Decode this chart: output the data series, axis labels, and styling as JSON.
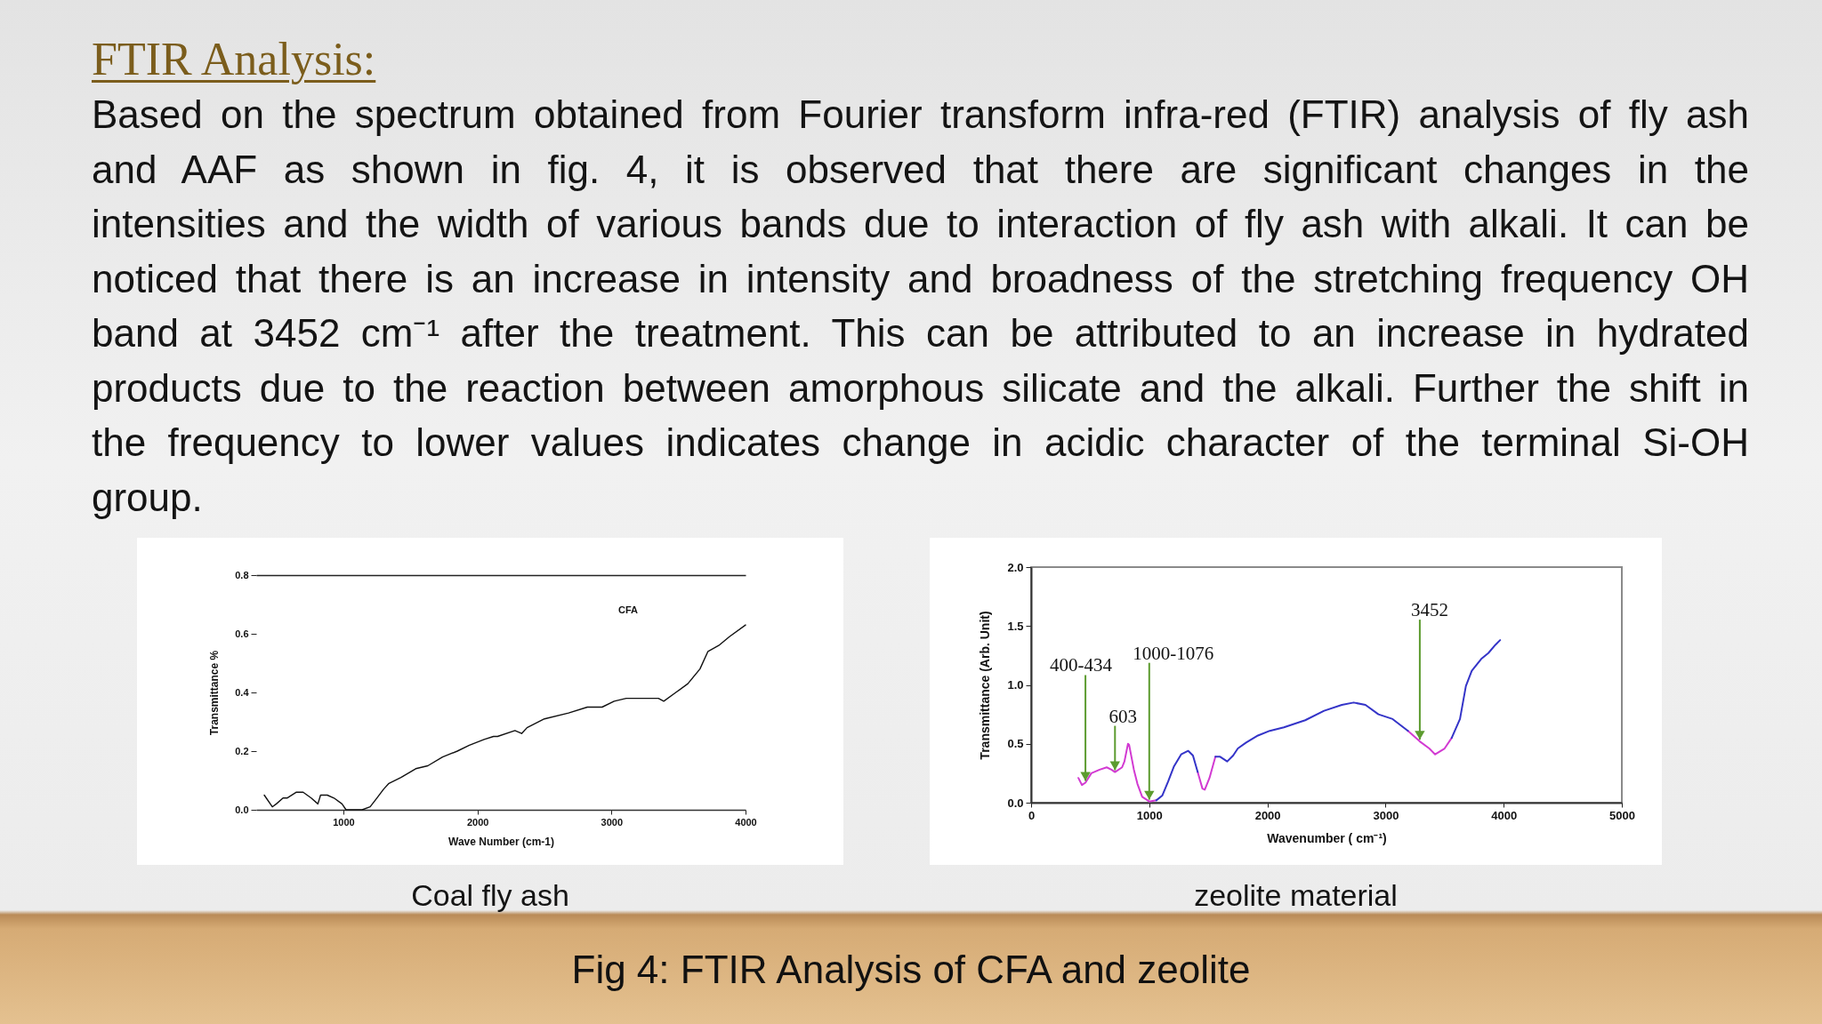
{
  "chart_data": [
    {
      "type": "other",
      "title": "FTIR Analysis:",
      "annotations": [
        "Based on the spectrum obtained from Fourier transform infra-red (FTIR) analysis of fly ash and AAF as shown in fig. 4, it is observed that there are significant changes in the intensities and the width of various bands due to interaction of fly ash with alkali. It can be noticed that there is an increase in intensity and broadness of the stretching frequency OH band at 3452 cm⁻¹ after the treatment. This can be attributed to an increase in hydrated products due to the reaction between amorphous silicate and the alkali. Further the shift in the frequency to lower values indicates change in acidic character of the terminal Si-OH group."
      ]
    },
    {
      "type": "line",
      "xlabel": "Wave Number (cm-1)",
      "ylabel": "Transmittance %",
      "xlim": [
        350,
        4000
      ],
      "xticks": [
        1000,
        2000,
        3000,
        4000
      ],
      "ylim": [
        0,
        0.8
      ],
      "yticks": [
        {
          "value": 0,
          "label": "0.0"
        },
        0.2,
        0.4,
        0.6,
        0.8
      ],
      "x": [
        410,
        470,
        500,
        550,
        580,
        650,
        700,
        760,
        810,
        830,
        880,
        930,
        990,
        1020,
        1140,
        1200,
        1250,
        1300,
        1340,
        1430,
        1540,
        1630,
        1740,
        1850,
        1940,
        2050,
        2120,
        2150,
        2280,
        2330,
        2370,
        2500,
        2680,
        2820,
        2930,
        3020,
        3110,
        3280,
        3350,
        3390,
        3480,
        3570,
        3660,
        3720,
        3800,
        3880,
        4000
      ],
      "series": [
        {
          "name": "CFA",
          "color": "#111111",
          "values": [
            0.05,
            0.01,
            0.02,
            0.04,
            0.04,
            0.06,
            0.06,
            0.04,
            0.02,
            0.05,
            0.05,
            0.04,
            0.02,
            0.0,
            0.0,
            0.01,
            0.04,
            0.07,
            0.09,
            0.11,
            0.14,
            0.15,
            0.18,
            0.2,
            0.22,
            0.24,
            0.25,
            0.25,
            0.27,
            0.26,
            0.28,
            0.31,
            0.33,
            0.35,
            0.35,
            0.37,
            0.38,
            0.38,
            0.38,
            0.37,
            0.4,
            0.43,
            0.48,
            0.54,
            0.56,
            0.59,
            0.63
          ]
        }
      ],
      "annotations": [
        "Coal fly ash"
      ]
    },
    {
      "type": "line",
      "xlabel": "Wavenumber ( cm⁻¹)",
      "ylabel": "Transmittance (Arb. Unit)",
      "xlim": [
        0,
        5000
      ],
      "xticks": [
        0,
        1000,
        2000,
        3000,
        4000,
        5000
      ],
      "ylim": [
        0,
        2
      ],
      "yticks": [
        {
          "value": 0,
          "label": "0.0"
        },
        0.5,
        {
          "value": 1,
          "label": "1.0"
        },
        1.5,
        {
          "value": 2,
          "label": "2.0"
        }
      ],
      "series": [
        {
          "color": "#d23ad2",
          "x": [
            400,
            430,
            460,
            510,
            580,
            640,
            680,
            710,
            770,
            790,
            820,
            830,
            870,
            900,
            940,
            1000,
            1060,
            1240,
            1410,
            1450,
            1470,
            1510,
            1560,
            2380,
            3190,
            3290,
            3370,
            3420,
            3500,
            3560
          ],
          "values": [
            0.21,
            0.15,
            0.17,
            0.25,
            0.28,
            0.3,
            0.28,
            0.26,
            0.3,
            0.35,
            0.5,
            0.49,
            0.28,
            0.16,
            0.05,
            0.01,
            0.02,
            null,
            0.26,
            0.12,
            0.11,
            0.21,
            0.39,
            null,
            0.61,
            0.52,
            0.46,
            0.41,
            0.46,
            0.55
          ]
        },
        {
          "color": "#3434c8",
          "x": [
            1060,
            1110,
            1160,
            1210,
            1270,
            1330,
            1370,
            1410,
            1490,
            1560,
            1600,
            1660,
            1710,
            1750,
            1820,
            1920,
            2020,
            2140,
            2320,
            2480,
            2630,
            2730,
            2830,
            2940,
            3060,
            3190,
            3380,
            3560,
            3630,
            3680,
            3730,
            3810,
            3870,
            3930,
            3970
          ],
          "values": [
            0.02,
            0.06,
            0.18,
            0.31,
            0.41,
            0.44,
            0.4,
            0.26,
            null,
            0.39,
            0.39,
            0.35,
            0.4,
            0.46,
            0.51,
            0.57,
            0.61,
            0.64,
            0.7,
            0.78,
            0.83,
            0.85,
            0.83,
            0.75,
            0.71,
            0.61,
            null,
            0.55,
            0.71,
            0.99,
            1.12,
            1.22,
            1.27,
            1.34,
            1.38
          ]
        }
      ],
      "annotations": [
        {
          "text": "400-434",
          "x": 460,
          "y": 0.17
        },
        {
          "text": "603",
          "x": 710,
          "y": 0.26
        },
        {
          "text": "1000-1076",
          "x": 1000,
          "y": 0.01
        },
        {
          "text": "3452",
          "x": 3290,
          "y": 0.52
        },
        "zeolite material"
      ]
    },
    {
      "type": "other",
      "title": "Fig 4: FTIR Analysis of CFA and zeolite"
    }
  ]
}
